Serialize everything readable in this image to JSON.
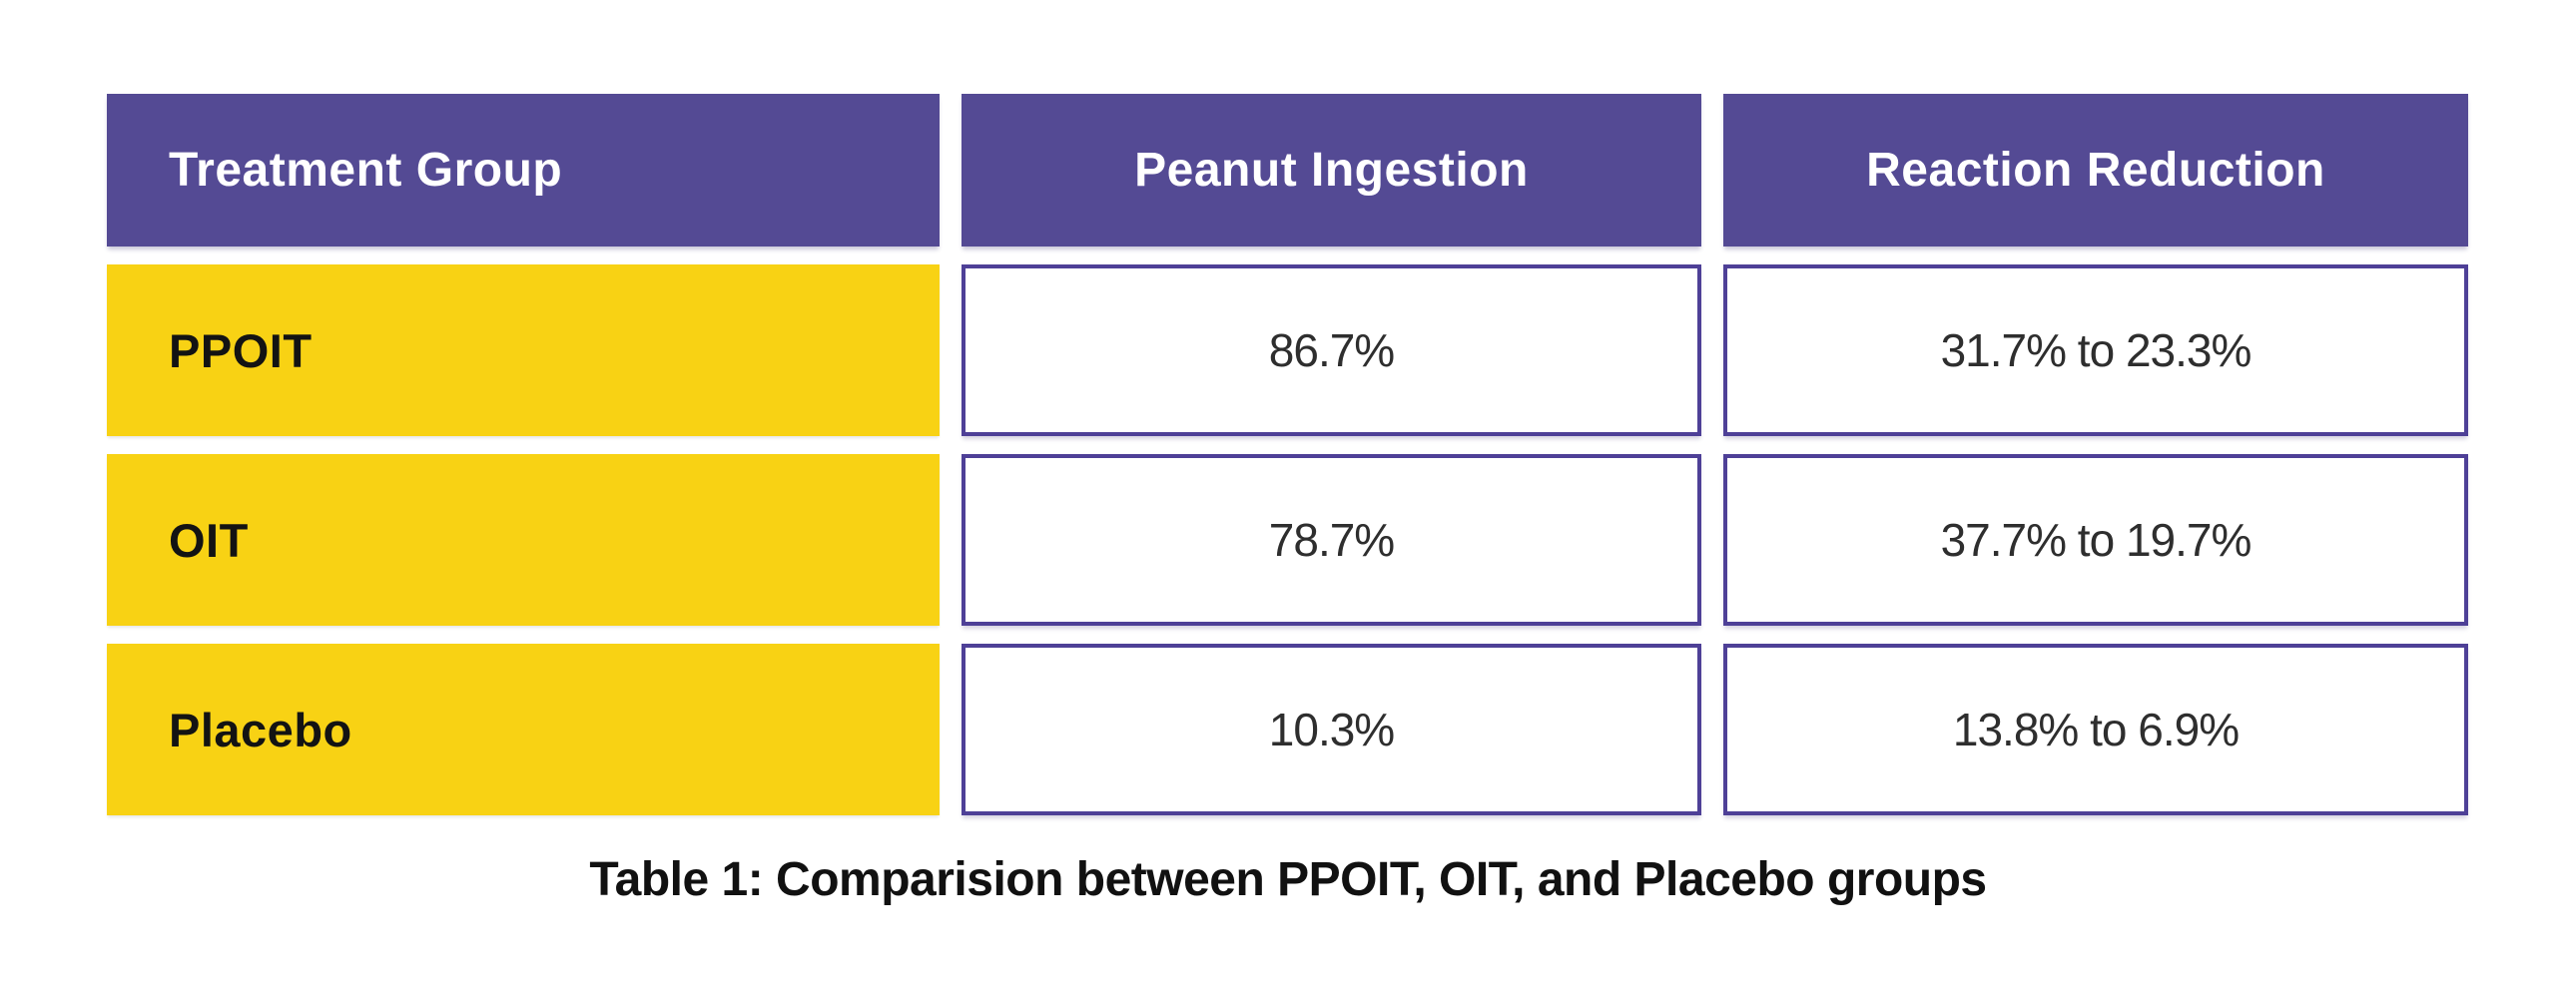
{
  "table": {
    "headers": [
      {
        "label": "Treatment Group"
      },
      {
        "label": "Peanut Ingestion"
      },
      {
        "label": "Reaction Reduction"
      }
    ],
    "rows": [
      {
        "label": "PPOIT",
        "values": [
          "86.7%",
          "31.7% to 23.3%"
        ]
      },
      {
        "label": "OIT",
        "values": [
          "78.7%",
          "37.7% to 19.7%"
        ]
      },
      {
        "label": "Placebo",
        "values": [
          "10.3%",
          "13.8% to 6.9%"
        ]
      }
    ],
    "caption": "Table 1: Comparision between PPOIT, OIT, and Placebo groups"
  },
  "colors": {
    "header_bg": "#544A94",
    "cell_border": "#4E4097",
    "row_label_bg": "#F8D214",
    "header_text": "#FFFFFF",
    "label_text": "#131313",
    "value_text": "#2E2E2E",
    "page_bg": "#FFFFFF"
  },
  "chart_data": {
    "type": "table",
    "title": "Table 1: Comparision between PPOIT, OIT, and Placebo groups",
    "columns": [
      "Treatment Group",
      "Peanut Ingestion",
      "Reaction Reduction"
    ],
    "rows": [
      [
        "PPOIT",
        "86.7%",
        "31.7% to 23.3%"
      ],
      [
        "OIT",
        "78.7%",
        "37.7% to 19.7%"
      ],
      [
        "Placebo",
        "10.3%",
        "13.8% to 6.9%"
      ]
    ],
    "values": {
      "peanut_ingestion_pct": [
        86.7,
        78.7,
        10.3
      ],
      "reaction_reduction_from_pct": [
        31.7,
        37.7,
        13.8
      ],
      "reaction_reduction_to_pct": [
        23.3,
        19.7,
        6.9
      ]
    }
  }
}
